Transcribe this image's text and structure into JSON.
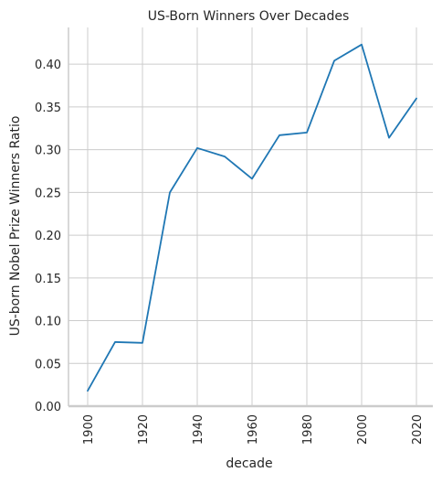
{
  "chart_data": {
    "type": "line",
    "title": "US-Born Winners Over Decades",
    "xlabel": "decade",
    "ylabel": "US-born Nobel Prize Winners Ratio",
    "x": [
      1900,
      1910,
      1920,
      1930,
      1940,
      1950,
      1960,
      1970,
      1980,
      1990,
      2000,
      2010,
      2020
    ],
    "series": [
      {
        "values": [
          0.018,
          0.075,
          0.074,
          0.25,
          0.302,
          0.292,
          0.266,
          0.317,
          0.32,
          0.404,
          0.423,
          0.314,
          0.36
        ],
        "color": "#1f77b4"
      }
    ],
    "xlim": [
      1893,
      2026
    ],
    "ylim": [
      0.0,
      0.443
    ],
    "xticks": [
      "1900",
      "1920",
      "1940",
      "1960",
      "1980",
      "2000",
      "2020"
    ],
    "yticks": [
      "0.00",
      "0.05",
      "0.10",
      "0.15",
      "0.20",
      "0.25",
      "0.30",
      "0.35",
      "0.40"
    ],
    "grid": true,
    "legend": "none"
  }
}
